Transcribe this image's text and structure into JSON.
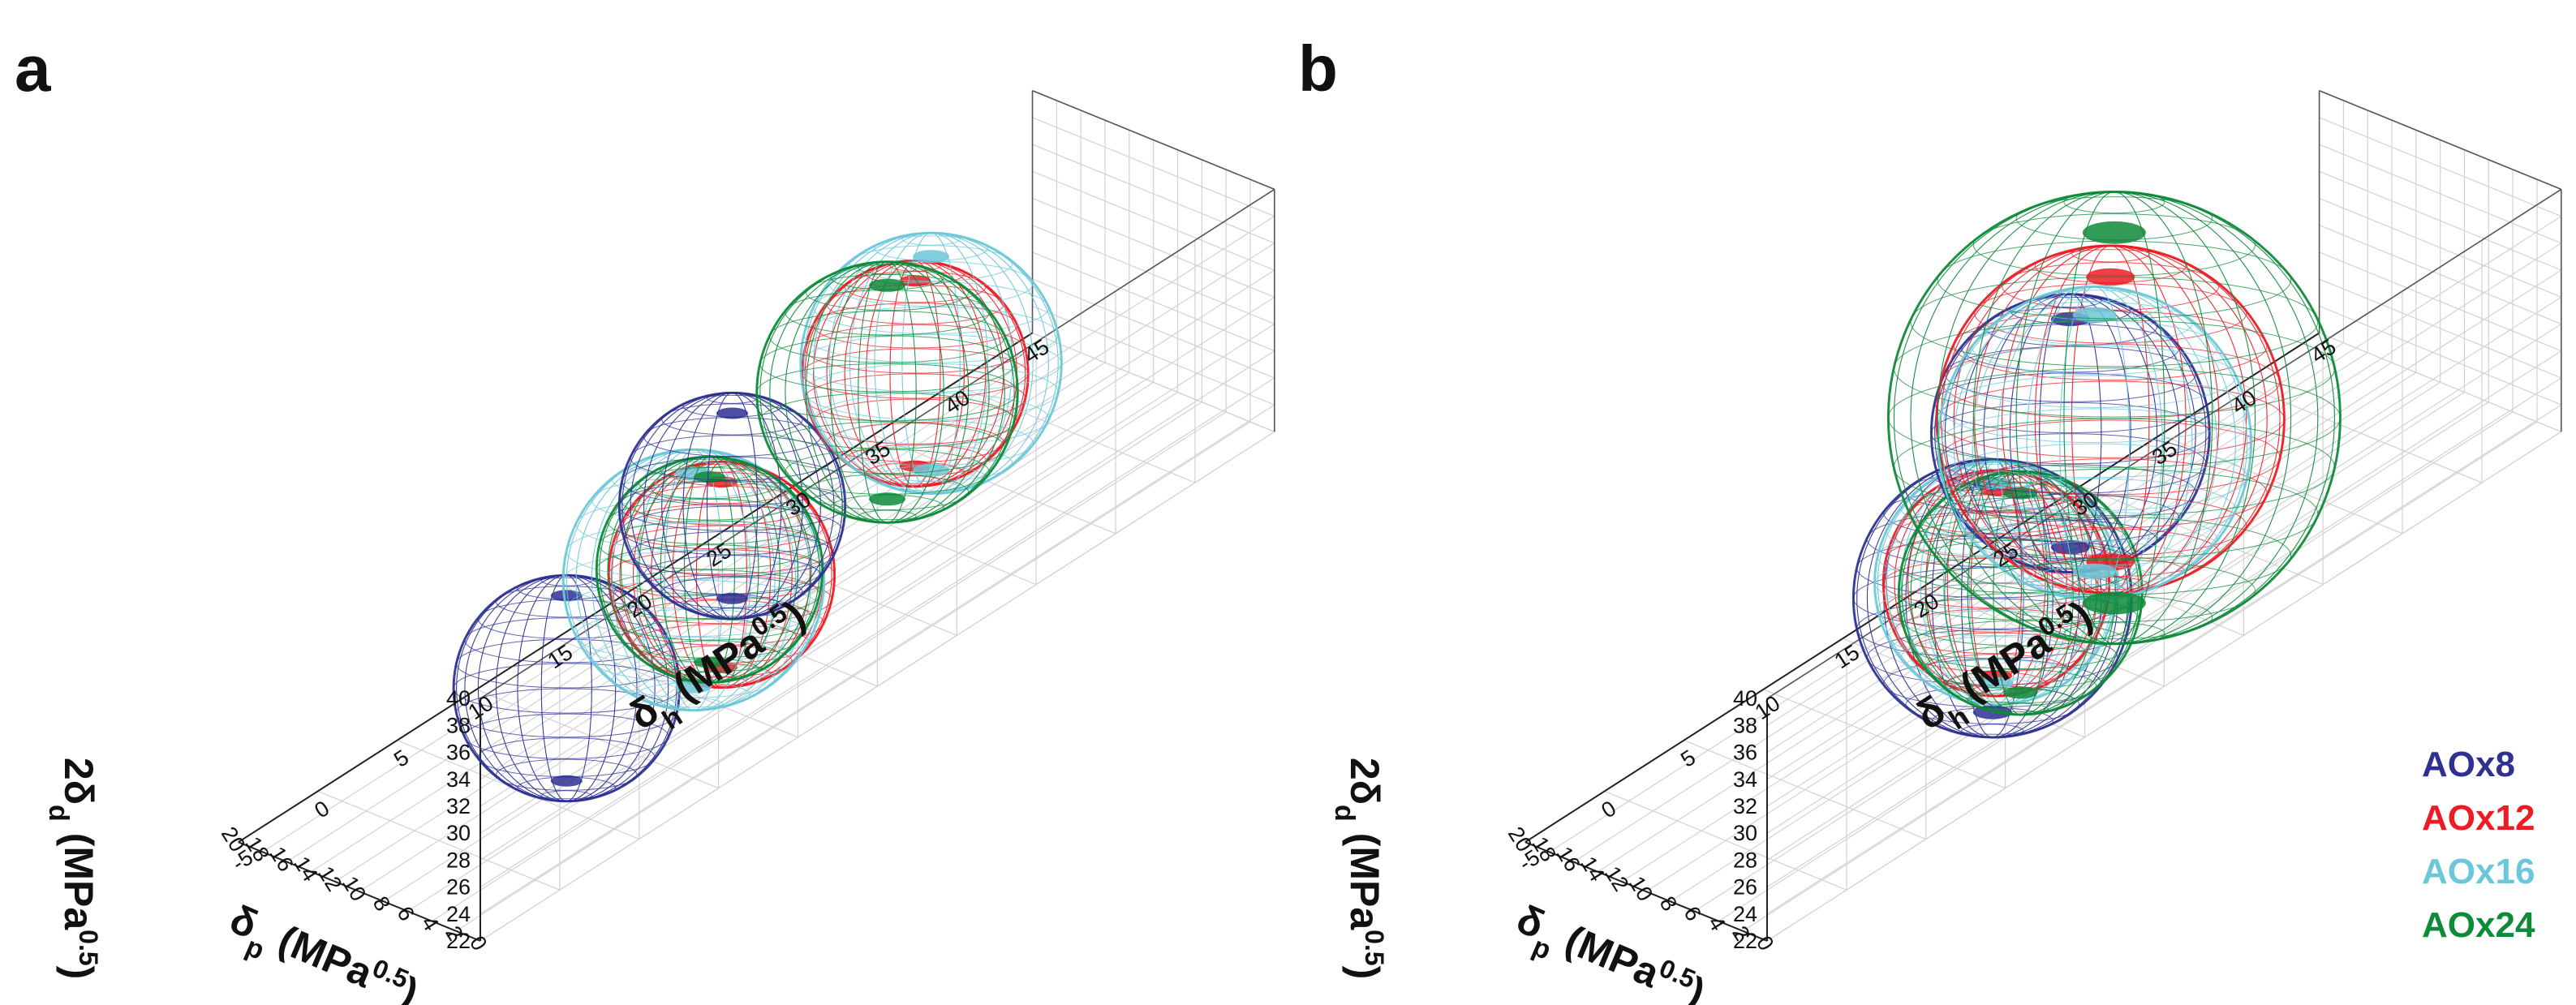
{
  "figure": {
    "legend_title": "",
    "legend": [
      {
        "label": "AOx8",
        "color": "#2e3192"
      },
      {
        "label": "AOx12",
        "color": "#ed1c24"
      },
      {
        "label": "AOx16",
        "color": "#6cc8d8"
      },
      {
        "label": "AOx24",
        "color": "#0d8a3a"
      }
    ]
  },
  "chart_data": [
    {
      "panel": "a",
      "type": "scatter3d-spheres",
      "axes": {
        "x": {
          "label": "δp (MPa0.5)",
          "symbol": "δ",
          "sub": "p",
          "unit_base": " (MPa",
          "unit_sup": "0.5",
          "unit_close": ")",
          "range": [
            0,
            20
          ],
          "ticks": [
            0,
            2,
            4,
            6,
            8,
            10,
            12,
            14,
            16,
            18,
            20
          ]
        },
        "y": {
          "label": "δh (MPa0.5)",
          "symbol": "δ",
          "sub": "h",
          "unit_base": " (MPa",
          "unit_sup": "0.5",
          "unit_close": ")",
          "range": [
            -5,
            45
          ],
          "ticks": [
            -5,
            0,
            5,
            10,
            15,
            20,
            25,
            30,
            35,
            40,
            45
          ]
        },
        "z": {
          "label": "2δd (MPa0.5)",
          "prefix": "2",
          "symbol": "δ",
          "sub": "d",
          "unit_base": " (MPa",
          "unit_sup": "0.5",
          "unit_close": ")",
          "range": [
            22,
            40
          ],
          "ticks": [
            22,
            24,
            26,
            28,
            30,
            32,
            34,
            36,
            38,
            40
          ]
        }
      },
      "spheres": [
        {
          "series": "AOx8",
          "color": "#2e3192",
          "center": [
            6,
            5,
            31
          ],
          "radius": 6.5
        },
        {
          "series": "AOx12",
          "color": "#ed1c24",
          "center": [
            5,
            14,
            33
          ],
          "radius": 6.5
        },
        {
          "series": "AOx16",
          "color": "#6cc8d8",
          "center": [
            6,
            13,
            33
          ],
          "radius": 7.5
        },
        {
          "series": "AOx24",
          "color": "#0d8a3a",
          "center": [
            6,
            14,
            33
          ],
          "radius": 6.5
        },
        {
          "series": "AOx8",
          "color": "#2e3192",
          "center": [
            12,
            20,
            31
          ],
          "radius": 6.5
        },
        {
          "series": "AOx12",
          "color": "#ed1c24",
          "center": [
            10,
            30,
            34
          ],
          "radius": 6.5
        },
        {
          "series": "AOx16",
          "color": "#6cc8d8",
          "center": [
            10,
            31,
            34
          ],
          "radius": 7.5
        },
        {
          "series": "AOx24",
          "color": "#0d8a3a",
          "center": [
            11,
            29,
            33
          ],
          "radius": 7.5
        }
      ]
    },
    {
      "panel": "b",
      "type": "scatter3d-spheres",
      "axes": {
        "x": {
          "label": "δp (MPa0.5)",
          "symbol": "δ",
          "sub": "p",
          "unit_base": " (MPa",
          "unit_sup": "0.5",
          "unit_close": ")",
          "range": [
            0,
            20
          ],
          "ticks": [
            0,
            2,
            4,
            6,
            8,
            10,
            12,
            14,
            16,
            18,
            20
          ]
        },
        "y": {
          "label": "δh (MPa0.5)",
          "symbol": "δ",
          "sub": "h",
          "unit_base": " (MPa",
          "unit_sup": "0.5",
          "unit_close": ")",
          "range": [
            -5,
            45
          ],
          "ticks": [
            -5,
            0,
            5,
            10,
            15,
            20,
            25,
            30,
            35,
            40,
            45
          ]
        },
        "z": {
          "label": "2δd (MPa0.5)",
          "prefix": "2",
          "symbol": "δ",
          "sub": "d",
          "unit_base": " (MPa",
          "unit_sup": "0.5",
          "unit_close": ")",
          "range": [
            22,
            40
          ],
          "ticks": [
            22,
            24,
            26,
            28,
            30,
            32,
            34,
            36,
            38,
            40
          ]
        }
      },
      "spheres": [
        {
          "series": "AOx8",
          "color": "#2e3192",
          "center": [
            5,
            13,
            32
          ],
          "radius": 8
        },
        {
          "series": "AOx12",
          "color": "#ed1c24",
          "center": [
            6,
            14,
            32
          ],
          "radius": 6.5
        },
        {
          "series": "AOx16",
          "color": "#6cc8d8",
          "center": [
            6,
            14,
            32
          ],
          "radius": 7
        },
        {
          "series": "AOx24",
          "color": "#0d8a3a",
          "center": [
            4,
            14,
            32
          ],
          "radius": 7
        },
        {
          "series": "AOx8",
          "color": "#2e3192",
          "center": [
            13,
            24,
            33
          ],
          "radius": 8
        },
        {
          "series": "AOx12",
          "color": "#ed1c24",
          "center": [
            11,
            25,
            34
          ],
          "radius": 10
        },
        {
          "series": "AOx16",
          "color": "#6cc8d8",
          "center": [
            11,
            24,
            33
          ],
          "radius": 9
        },
        {
          "series": "AOx24",
          "color": "#0d8a3a",
          "center": [
            12,
            26,
            33
          ],
          "radius": 13
        }
      ]
    }
  ]
}
